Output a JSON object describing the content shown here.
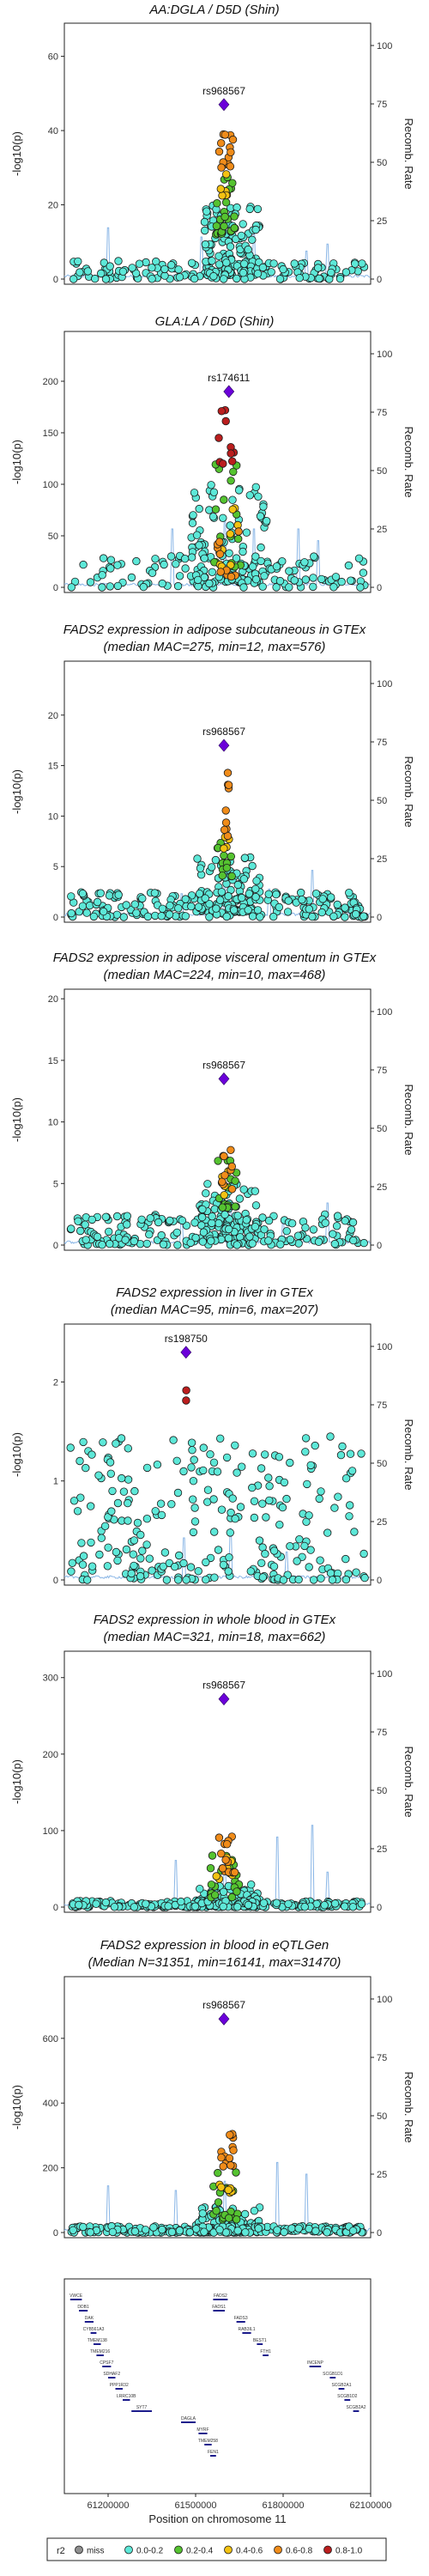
{
  "chart_data": [
    {
      "type": "scatter",
      "title": "AA:DGLA / D5D (Shin)",
      "subtitle": "",
      "ylabel": "-log10(p)",
      "y2label": "Recomb. Rate",
      "ylim": [
        0,
        68
      ],
      "yticks": [
        0,
        20,
        40,
        60
      ],
      "y2ticks": [
        0,
        25,
        50,
        75,
        100
      ],
      "lead_snp": {
        "label": "rs968567",
        "x": 61.597,
        "y": 47
      },
      "clusters": [
        {
          "r2": "0.6-0.8",
          "count": 14,
          "x_range": [
            61.58,
            61.63
          ],
          "y_range": [
            30,
            40
          ]
        },
        {
          "r2": "0.4-0.6",
          "count": 6,
          "x_range": [
            61.585,
            61.615
          ],
          "y_range": [
            22,
            30
          ]
        },
        {
          "r2": "0.2-0.4",
          "count": 22,
          "x_range": [
            61.57,
            61.64
          ],
          "y_range": [
            12,
            28
          ]
        },
        {
          "r2": "0.0-0.2",
          "count": 120,
          "x_range": [
            61.53,
            61.72
          ],
          "y_range": [
            1,
            20
          ]
        },
        {
          "r2": "0.0-0.2",
          "count": 140,
          "x_range": [
            61.07,
            62.08
          ],
          "y_range": [
            0,
            5
          ]
        }
      ],
      "recomb_peaks": [
        [
          61.2,
          22
        ],
        [
          61.52,
          18
        ],
        [
          61.7,
          20
        ],
        [
          61.88,
          12
        ],
        [
          61.95,
          15
        ]
      ]
    },
    {
      "type": "scatter",
      "title": "GLA:LA / D6D (Shin)",
      "subtitle": "",
      "ylabel": "-log10(p)",
      "y2label": "Recomb. Rate",
      "ylim": [
        0,
        245
      ],
      "yticks": [
        0,
        50,
        100,
        150,
        200
      ],
      "y2ticks": [
        0,
        25,
        50,
        75,
        100
      ],
      "lead_snp": {
        "label": "rs174611",
        "x": 61.614,
        "y": 190
      },
      "clusters": [
        {
          "r2": "0.8-1.0",
          "count": 10,
          "x_range": [
            61.57,
            61.64
          ],
          "y_range": [
            120,
            175
          ]
        },
        {
          "r2": "0.6-0.8",
          "count": 10,
          "x_range": [
            61.57,
            61.65
          ],
          "y_range": [
            10,
            60
          ]
        },
        {
          "r2": "0.4-0.6",
          "count": 8,
          "x_range": [
            61.56,
            61.65
          ],
          "y_range": [
            20,
            80
          ]
        },
        {
          "r2": "0.2-0.4",
          "count": 18,
          "x_range": [
            61.55,
            61.66
          ],
          "y_range": [
            20,
            120
          ]
        },
        {
          "r2": "0.0-0.2",
          "count": 110,
          "x_range": [
            61.48,
            61.75
          ],
          "y_range": [
            5,
            100
          ]
        },
        {
          "r2": "0.0-0.2",
          "count": 110,
          "x_range": [
            61.07,
            62.08
          ],
          "y_range": [
            0,
            35
          ]
        }
      ],
      "recomb_peaks": [
        [
          61.42,
          25
        ],
        [
          61.6,
          30
        ],
        [
          61.7,
          25
        ],
        [
          61.85,
          25
        ],
        [
          61.92,
          20
        ]
      ]
    },
    {
      "type": "scatter",
      "title": "FADS2 expression in adipose subcutaneous in GTEx",
      "subtitle": "(median MAC=275, min=12, max=576)",
      "ylabel": "-log10(p)",
      "y2label": "Recomb. Rate",
      "ylim": [
        0,
        25
      ],
      "yticks": [
        0,
        5,
        10,
        15,
        20
      ],
      "y2ticks": [
        0,
        25,
        50,
        75,
        100
      ],
      "lead_snp": {
        "label": "rs968567",
        "x": 61.597,
        "y": 17
      },
      "clusters": [
        {
          "r2": "0.6-0.8",
          "count": 9,
          "x_range": [
            61.595,
            61.615
          ],
          "y_range": [
            8,
            14.5
          ]
        },
        {
          "r2": "0.4-0.6",
          "count": 4,
          "x_range": [
            61.59,
            61.615
          ],
          "y_range": [
            6.5,
            8
          ]
        },
        {
          "r2": "0.2-0.4",
          "count": 12,
          "x_range": [
            61.57,
            61.63
          ],
          "y_range": [
            4,
            8
          ]
        },
        {
          "r2": "0.0-0.2",
          "count": 100,
          "x_range": [
            61.5,
            61.72
          ],
          "y_range": [
            0.5,
            6
          ]
        },
        {
          "r2": "0.0-0.2",
          "count": 200,
          "x_range": [
            61.07,
            62.08
          ],
          "y_range": [
            0,
            2.5
          ]
        }
      ],
      "recomb_peaks": [
        [
          61.45,
          10
        ],
        [
          61.6,
          15
        ],
        [
          61.75,
          12
        ],
        [
          61.9,
          20
        ]
      ]
    },
    {
      "type": "scatter",
      "title": "FADS2 expression in adipose visceral omentum in GTEx",
      "subtitle": "(median MAC=224, min=10, max=468)",
      "ylabel": "-log10(p)",
      "y2label": "Recomb. Rate",
      "ylim": [
        0,
        20.5
      ],
      "yticks": [
        0,
        5,
        10,
        15,
        20
      ],
      "y2ticks": [
        0,
        25,
        50,
        75,
        100
      ],
      "lead_snp": {
        "label": "rs968567",
        "x": 61.597,
        "y": 13.5
      },
      "clusters": [
        {
          "r2": "0.6-0.8",
          "count": 10,
          "x_range": [
            61.59,
            61.625
          ],
          "y_range": [
            4.5,
            9
          ]
        },
        {
          "r2": "0.4-0.6",
          "count": 4,
          "x_range": [
            61.58,
            61.62
          ],
          "y_range": [
            4,
            6
          ]
        },
        {
          "r2": "0.2-0.4",
          "count": 14,
          "x_range": [
            61.57,
            61.64
          ],
          "y_range": [
            3,
            7
          ]
        },
        {
          "r2": "0.0-0.2",
          "count": 90,
          "x_range": [
            61.5,
            61.72
          ],
          "y_range": [
            0.5,
            5
          ]
        },
        {
          "r2": "0.0-0.2",
          "count": 190,
          "x_range": [
            61.07,
            62.08
          ],
          "y_range": [
            0,
            2.5
          ]
        }
      ],
      "recomb_peaks": [
        [
          61.45,
          12
        ],
        [
          61.62,
          15
        ],
        [
          61.8,
          10
        ],
        [
          61.95,
          18
        ]
      ]
    },
    {
      "type": "scatter",
      "title": "FADS2 expression in liver in GTEx",
      "subtitle": "(median MAC=95, min=6, max=207)",
      "ylabel": "-log10(p)",
      "y2label": "Recomb. Rate",
      "ylim": [
        0,
        2.55
      ],
      "yticks": [
        0,
        1,
        2
      ],
      "y2ticks": [
        0,
        25,
        50,
        75,
        100
      ],
      "lead_snp": {
        "label": "rs198750",
        "x": 61.467,
        "y": 2.3
      },
      "clusters": [
        {
          "r2": "0.8-1.0",
          "count": 2,
          "x_range": [
            61.466,
            61.468
          ],
          "y_range": [
            1.75,
            2.02
          ]
        },
        {
          "r2": "0.0-0.2",
          "count": 260,
          "x_range": [
            61.07,
            62.08
          ],
          "y_range": [
            0,
            1.45
          ]
        }
      ],
      "recomb_peaks": [
        [
          61.46,
          18
        ],
        [
          61.62,
          22
        ],
        [
          61.81,
          12
        ]
      ]
    },
    {
      "type": "scatter",
      "title": "FADS2 expression in whole blood in GTEx",
      "subtitle": "(median MAC=321, min=18, max=662)",
      "ylabel": "-log10(p)",
      "y2label": "Recomb. Rate",
      "ylim": [
        0,
        330
      ],
      "yticks": [
        0,
        100,
        200,
        300
      ],
      "y2ticks": [
        0,
        25,
        50,
        75,
        100
      ],
      "lead_snp": {
        "label": "rs968567",
        "x": 61.597,
        "y": 272
      },
      "clusters": [
        {
          "r2": "0.6-0.8",
          "count": 16,
          "x_range": [
            61.58,
            61.64
          ],
          "y_range": [
            45,
            95
          ]
        },
        {
          "r2": "0.4-0.6",
          "count": 6,
          "x_range": [
            61.57,
            61.63
          ],
          "y_range": [
            35,
            65
          ]
        },
        {
          "r2": "0.2-0.4",
          "count": 20,
          "x_range": [
            61.55,
            61.66
          ],
          "y_range": [
            10,
            70
          ]
        },
        {
          "r2": "0.0-0.2",
          "count": 80,
          "x_range": [
            61.5,
            61.72
          ],
          "y_range": [
            0,
            30
          ]
        },
        {
          "r2": "0.0-0.2",
          "count": 220,
          "x_range": [
            61.07,
            62.08
          ],
          "y_range": [
            0,
            8
          ]
        }
      ],
      "recomb_peaks": [
        [
          61.43,
          20
        ],
        [
          61.6,
          20
        ],
        [
          61.78,
          30
        ],
        [
          61.9,
          35
        ],
        [
          61.95,
          15
        ]
      ]
    },
    {
      "type": "scatter",
      "title": "FADS2 expression in blood in eQTLGen",
      "subtitle": "(Median N=31351, min=16141, max=31470)",
      "ylabel": "-log10(p)",
      "y2label": "Recomb. Rate",
      "ylim": [
        0,
        780
      ],
      "yticks": [
        0,
        200,
        400,
        600
      ],
      "y2ticks": [
        0,
        25,
        50,
        75,
        100
      ],
      "lead_snp": {
        "label": "rs968567",
        "x": 61.597,
        "y": 660
      },
      "clusters": [
        {
          "r2": "0.6-0.8",
          "count": 16,
          "x_range": [
            61.585,
            61.63
          ],
          "y_range": [
            200,
            330
          ]
        },
        {
          "r2": "0.4-0.6",
          "count": 6,
          "x_range": [
            61.575,
            61.625
          ],
          "y_range": [
            120,
            230
          ]
        },
        {
          "r2": "0.2-0.4",
          "count": 20,
          "x_range": [
            61.56,
            61.65
          ],
          "y_range": [
            40,
            200
          ]
        },
        {
          "r2": "0.0-0.2",
          "count": 90,
          "x_range": [
            61.5,
            61.72
          ],
          "y_range": [
            0,
            80
          ]
        },
        {
          "r2": "0.0-0.2",
          "count": 220,
          "x_range": [
            61.07,
            62.08
          ],
          "y_range": [
            0,
            20
          ]
        }
      ],
      "recomb_peaks": [
        [
          61.2,
          20
        ],
        [
          61.43,
          18
        ],
        [
          61.6,
          22
        ],
        [
          61.78,
          30
        ],
        [
          61.88,
          25
        ]
      ]
    }
  ],
  "gene_track": {
    "genes": [
      {
        "name": "VWCE",
        "start": 61.07,
        "end": 61.11,
        "level": 0
      },
      {
        "name": "DDB1",
        "start": 61.1,
        "end": 61.13,
        "level": 1
      },
      {
        "name": "DAK",
        "start": 61.12,
        "end": 61.15,
        "level": 2
      },
      {
        "name": "CYB561A3",
        "start": 61.14,
        "end": 61.16,
        "level": 3
      },
      {
        "name": "TMEM138",
        "start": 61.15,
        "end": 61.175,
        "level": 4
      },
      {
        "name": "TMEM216",
        "start": 61.16,
        "end": 61.185,
        "level": 5
      },
      {
        "name": "CPSF7",
        "start": 61.18,
        "end": 61.21,
        "level": 6
      },
      {
        "name": "SDHAF2",
        "start": 61.2,
        "end": 61.225,
        "level": 7
      },
      {
        "name": "PPP1R32",
        "start": 61.225,
        "end": 61.25,
        "level": 8
      },
      {
        "name": "LRRC10B",
        "start": 61.25,
        "end": 61.275,
        "level": 9
      },
      {
        "name": "SYT7",
        "start": 61.28,
        "end": 61.35,
        "level": 10
      },
      {
        "name": "DAGLA",
        "start": 61.45,
        "end": 61.5,
        "level": 11
      },
      {
        "name": "MYRF",
        "start": 61.51,
        "end": 61.54,
        "level": 12
      },
      {
        "name": "TMEM258",
        "start": 61.53,
        "end": 61.555,
        "level": 13
      },
      {
        "name": "FEN1",
        "start": 61.55,
        "end": 61.57,
        "level": 14
      },
      {
        "name": "FADS2",
        "start": 61.56,
        "end": 61.61,
        "level": 0
      },
      {
        "name": "FADS1",
        "start": 61.56,
        "end": 61.6,
        "level": 1
      },
      {
        "name": "FADS3",
        "start": 61.64,
        "end": 61.67,
        "level": 2
      },
      {
        "name": "RAB3IL1",
        "start": 61.66,
        "end": 61.69,
        "level": 3
      },
      {
        "name": "BEST1",
        "start": 61.71,
        "end": 61.73,
        "level": 4
      },
      {
        "name": "FTH1",
        "start": 61.73,
        "end": 61.75,
        "level": 5
      },
      {
        "name": "INCENP",
        "start": 61.89,
        "end": 61.93,
        "level": 6
      },
      {
        "name": "SCGB1D1",
        "start": 61.96,
        "end": 61.98,
        "level": 7
      },
      {
        "name": "SCGB2A1",
        "start": 61.99,
        "end": 62.01,
        "level": 8
      },
      {
        "name": "SCGB1D2",
        "start": 62.01,
        "end": 62.03,
        "level": 9
      },
      {
        "name": "SCGB2A2",
        "start": 62.04,
        "end": 62.06,
        "level": 10
      }
    ]
  },
  "x_axis": {
    "label": "Position on chromosome 11",
    "range": [
      61.05,
      62.1
    ],
    "ticks": [
      61.2,
      61.5,
      61.8,
      62.1
    ],
    "tick_labels": [
      "61200000",
      "61500000",
      "61800000",
      "62100000"
    ]
  },
  "legend": {
    "title": "r2",
    "items": [
      {
        "label": "miss",
        "color": "#8f8f8f"
      },
      {
        "label": "0.0-0.2",
        "color": "#5de8d8"
      },
      {
        "label": "0.2-0.4",
        "color": "#55c330"
      },
      {
        "label": "0.4-0.6",
        "color": "#f3c212"
      },
      {
        "label": "0.6-0.8",
        "color": "#f08c1a"
      },
      {
        "label": "0.8-1.0",
        "color": "#bb1e1e"
      }
    ]
  },
  "colors": {
    "lead": "#6b00d9",
    "recomb_line": "#8ab6e6",
    "gene": "#1c1c8c"
  }
}
